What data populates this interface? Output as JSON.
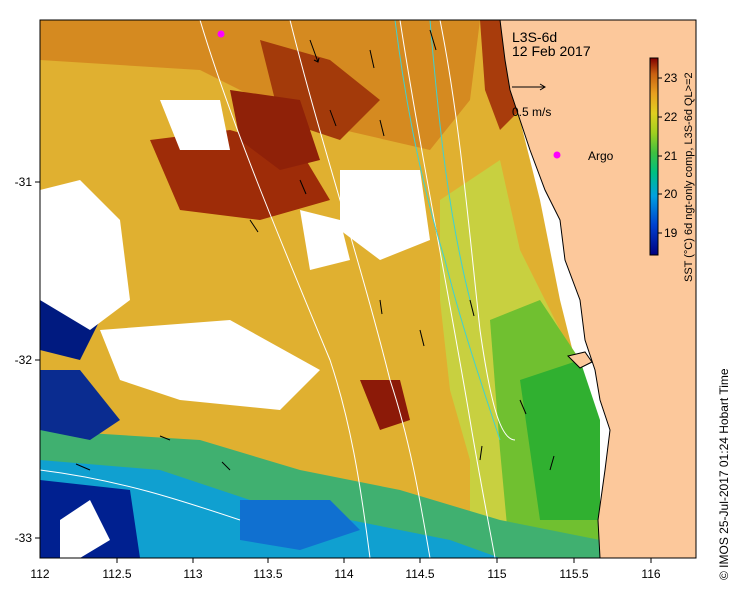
{
  "map": {
    "title_line1": "L3S-6d",
    "title_line2": "12 Feb 2017",
    "scale_label": "0.5 m/s",
    "argo_label": "Argo",
    "lon_ticks": [
      "112",
      "112.5",
      "113",
      "113.5",
      "114",
      "114.5",
      "115",
      "115.5",
      "116"
    ],
    "lat_ticks": [
      "-31",
      "-32",
      "-33"
    ],
    "land_color": "#fcc89b",
    "argo_color": "#ff00ff"
  },
  "colorbar": {
    "ticks": [
      "19",
      "20",
      "21",
      "22",
      "23"
    ],
    "label": "SST (°C) 6d ngt-only comp, L3S-6d QL>=2",
    "range": [
      18.5,
      23.5
    ]
  },
  "credit": "© IMOS 25-Jul-2017 01:24 Hobart Time"
}
